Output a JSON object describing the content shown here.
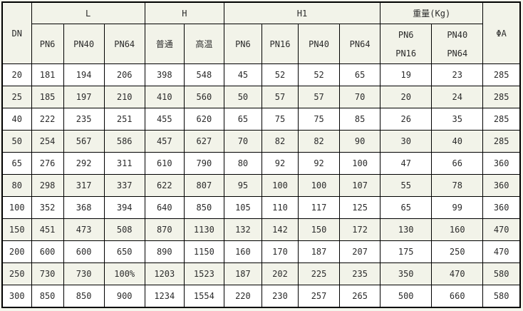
{
  "table": {
    "header": {
      "dn": "DN",
      "groups": [
        {
          "label": "L"
        },
        {
          "label": "H"
        },
        {
          "label": "H1"
        },
        {
          "label": "重量(Kg)"
        }
      ],
      "sub": [
        "PN6",
        "PN40",
        "PN64",
        "普通",
        "高温",
        "PN6",
        "PN16",
        "PN40",
        "PN64"
      ],
      "weight_cols": [
        {
          "top": "PN6",
          "bottom": "PN16"
        },
        {
          "top": "PN40",
          "bottom": "PN64"
        }
      ],
      "phi_a": "ΦA"
    },
    "rows": [
      [
        "20",
        "181",
        "194",
        "206",
        "398",
        "548",
        "45",
        "52",
        "52",
        "65",
        "19",
        "23",
        "285"
      ],
      [
        "25",
        "185",
        "197",
        "210",
        "410",
        "560",
        "50",
        "57",
        "57",
        "70",
        "20",
        "24",
        "285"
      ],
      [
        "40",
        "222",
        "235",
        "251",
        "455",
        "620",
        "65",
        "75",
        "75",
        "85",
        "26",
        "35",
        "285"
      ],
      [
        "50",
        "254",
        "567",
        "586",
        "457",
        "627",
        "70",
        "82",
        "82",
        "90",
        "30",
        "40",
        "285"
      ],
      [
        "65",
        "276",
        "292",
        "311",
        "610",
        "790",
        "80",
        "92",
        "92",
        "100",
        "47",
        "66",
        "360"
      ],
      [
        "80",
        "298",
        "317",
        "337",
        "622",
        "807",
        "95",
        "100",
        "100",
        "107",
        "55",
        "78",
        "360"
      ],
      [
        "100",
        "352",
        "368",
        "394",
        "640",
        "850",
        "105",
        "110",
        "117",
        "125",
        "65",
        "99",
        "360"
      ],
      [
        "150",
        "451",
        "473",
        "508",
        "870",
        "1130",
        "132",
        "142",
        "150",
        "172",
        "130",
        "160",
        "470"
      ],
      [
        "200",
        "600",
        "600",
        "650",
        "890",
        "1150",
        "160",
        "170",
        "187",
        "207",
        "175",
        "250",
        "470"
      ],
      [
        "250",
        "730",
        "730",
        "100%",
        "1203",
        "1523",
        "187",
        "202",
        "225",
        "235",
        "350",
        "470",
        "580"
      ],
      [
        "300",
        "850",
        "850",
        "900",
        "1234",
        "1554",
        "220",
        "230",
        "257",
        "265",
        "500",
        "660",
        "580"
      ]
    ],
    "colors": {
      "stripe": "#f2f3e9",
      "border": "#000000",
      "text": "#2b2b2b"
    }
  }
}
